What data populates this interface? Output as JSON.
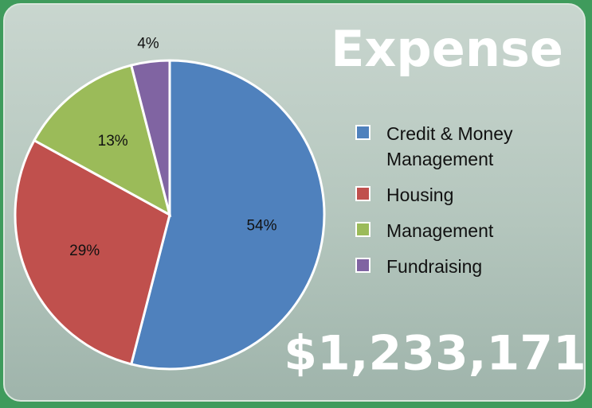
{
  "chart_data": {
    "type": "pie",
    "title": "Expense",
    "categories": [
      "Credit & Money Management",
      "Housing",
      "Management",
      "Fundraising"
    ],
    "values": [
      54,
      29,
      13,
      4
    ],
    "value_labels": [
      "54%",
      "29%",
      "13%",
      "4%"
    ],
    "colors": [
      "#4f81bd",
      "#c0504d",
      "#9bbb59",
      "#8064a2"
    ],
    "annotations": [
      "$1,233,171"
    ],
    "legend": "right"
  }
}
